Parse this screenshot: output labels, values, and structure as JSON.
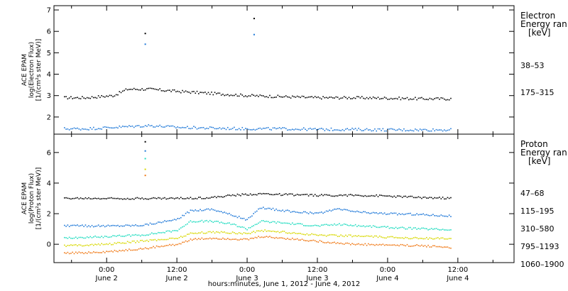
{
  "chart_data": [
    {
      "type": "scatter",
      "panel": "electron",
      "ylabel_lines": [
        "ACE EPAM",
        "log(Electron Flux)",
        "[1/(cm²s ster MeV)]"
      ],
      "legend_title": [
        "Electron",
        "Energy ran",
        "[keV]"
      ],
      "ylim": [
        1.2,
        7.2
      ],
      "yticks": [
        2,
        3,
        4,
        5,
        6,
        7
      ],
      "series": [
        {
          "name": "38–53",
          "color": "#000000",
          "values": [
            [
              -0.6,
              2.9
            ],
            [
              -0.3,
              2.9
            ],
            [
              0.1,
              3.0
            ],
            [
              0.3,
              3.3
            ],
            [
              0.6,
              3.3
            ],
            [
              1.0,
              3.2
            ],
            [
              1.5,
              3.1
            ],
            [
              2.0,
              3.0
            ],
            [
              2.5,
              2.95
            ],
            [
              3.0,
              2.9
            ],
            [
              3.5,
              2.9
            ],
            [
              4.0,
              2.88
            ],
            [
              4.5,
              2.85
            ],
            [
              4.9,
              2.85
            ]
          ],
          "outliers": [
            [
              0.55,
              5.9
            ],
            [
              2.1,
              6.6
            ]
          ]
        },
        {
          "name": "175–315",
          "color": "#1e78d8",
          "values": [
            [
              -0.6,
              1.45
            ],
            [
              -0.3,
              1.45
            ],
            [
              0.3,
              1.55
            ],
            [
              0.6,
              1.6
            ],
            [
              1.0,
              1.52
            ],
            [
              1.5,
              1.48
            ],
            [
              2.0,
              1.45
            ],
            [
              2.5,
              1.45
            ],
            [
              3.0,
              1.42
            ],
            [
              3.5,
              1.42
            ],
            [
              4.0,
              1.4
            ],
            [
              4.5,
              1.4
            ],
            [
              4.9,
              1.4
            ]
          ],
          "outliers": [
            [
              0.55,
              5.4
            ],
            [
              2.1,
              5.85
            ]
          ]
        }
      ]
    },
    {
      "type": "scatter",
      "panel": "proton",
      "ylabel_lines": [
        "ACE EPAM",
        "log(Proton Flux)",
        "[1/(cm²s ster MeV)]"
      ],
      "legend_title": [
        "Proton",
        "Energy ran",
        "[keV]"
      ],
      "ylim": [
        -1.2,
        7.2
      ],
      "yticks": [
        0,
        2,
        4,
        6
      ],
      "series": [
        {
          "name": "47–68",
          "color": "#000000",
          "values": [
            [
              -0.6,
              3.0
            ],
            [
              0.0,
              3.0
            ],
            [
              0.5,
              3.0
            ],
            [
              1.0,
              3.0
            ],
            [
              1.5,
              3.05
            ],
            [
              1.8,
              3.2
            ],
            [
              2.2,
              3.3
            ],
            [
              2.5,
              3.25
            ],
            [
              3.0,
              3.2
            ],
            [
              3.5,
              3.2
            ],
            [
              4.0,
              3.15
            ],
            [
              4.5,
              3.05
            ],
            [
              4.9,
              3.0
            ]
          ]
        },
        {
          "name": "115–195",
          "color": "#1e78d8",
          "values": [
            [
              -0.6,
              1.2
            ],
            [
              0.0,
              1.2
            ],
            [
              0.5,
              1.25
            ],
            [
              1.0,
              1.6
            ],
            [
              1.2,
              2.2
            ],
            [
              1.5,
              2.3
            ],
            [
              1.8,
              1.9
            ],
            [
              2.0,
              1.6
            ],
            [
              2.2,
              2.4
            ],
            [
              2.5,
              2.2
            ],
            [
              3.0,
              2.0
            ],
            [
              3.3,
              2.3
            ],
            [
              3.6,
              2.1
            ],
            [
              4.0,
              2.0
            ],
            [
              4.5,
              1.95
            ],
            [
              4.9,
              1.85
            ]
          ]
        },
        {
          "name": "310–580",
          "color": "#20dcc0",
          "values": [
            [
              -0.6,
              0.4
            ],
            [
              0.0,
              0.5
            ],
            [
              0.5,
              0.6
            ],
            [
              1.0,
              0.9
            ],
            [
              1.2,
              1.5
            ],
            [
              1.5,
              1.5
            ],
            [
              1.8,
              1.3
            ],
            [
              2.0,
              1.0
            ],
            [
              2.2,
              1.5
            ],
            [
              2.5,
              1.4
            ],
            [
              3.0,
              1.2
            ],
            [
              3.3,
              1.3
            ],
            [
              3.6,
              1.2
            ],
            [
              4.0,
              1.1
            ],
            [
              4.5,
              1.0
            ],
            [
              4.9,
              0.95
            ]
          ]
        },
        {
          "name": "795–1193",
          "color": "#d8d800",
          "values": [
            [
              -0.6,
              -0.1
            ],
            [
              0.0,
              0.0
            ],
            [
              0.5,
              0.2
            ],
            [
              1.0,
              0.4
            ],
            [
              1.2,
              0.7
            ],
            [
              1.5,
              0.8
            ],
            [
              1.8,
              0.75
            ],
            [
              2.0,
              0.7
            ],
            [
              2.2,
              0.9
            ],
            [
              2.5,
              0.8
            ],
            [
              3.0,
              0.6
            ],
            [
              3.5,
              0.55
            ],
            [
              4.0,
              0.45
            ],
            [
              4.5,
              0.4
            ],
            [
              4.9,
              0.35
            ]
          ]
        },
        {
          "name": "1060–1900",
          "color": "#f07814",
          "values": [
            [
              -0.6,
              -0.6
            ],
            [
              0.0,
              -0.5
            ],
            [
              0.5,
              -0.3
            ],
            [
              1.0,
              0.0
            ],
            [
              1.2,
              0.3
            ],
            [
              1.5,
              0.4
            ],
            [
              1.8,
              0.35
            ],
            [
              2.0,
              0.3
            ],
            [
              2.2,
              0.5
            ],
            [
              2.5,
              0.4
            ],
            [
              3.0,
              0.2
            ],
            [
              3.5,
              0.0
            ],
            [
              4.0,
              -0.05
            ],
            [
              4.5,
              -0.1
            ],
            [
              4.9,
              -0.2
            ]
          ]
        }
      ],
      "outliers": [
        {
          "series": 0,
          "x": 0.55,
          "y": 6.7
        },
        {
          "series": 1,
          "x": 0.55,
          "y": 6.1
        },
        {
          "series": 2,
          "x": 0.55,
          "y": 5.6
        },
        {
          "series": 3,
          "x": 0.55,
          "y": 4.9
        },
        {
          "series": 4,
          "x": 0.55,
          "y": 4.5
        }
      ]
    }
  ],
  "xaxis": {
    "label": "hours:minutes, June  1, 2012 - June  4, 2012",
    "xlim": [
      -0.75,
      5.8
    ],
    "ticks": [
      {
        "x": 0.0,
        "time": "0:00",
        "date": "June 2"
      },
      {
        "x": 1.0,
        "time": "12:00",
        "date": "June 2"
      },
      {
        "x": 2.0,
        "time": "0:00",
        "date": "June 3"
      },
      {
        "x": 3.0,
        "time": "12:00",
        "date": "June 3"
      },
      {
        "x": 4.0,
        "time": "0:00",
        "date": "June 4"
      },
      {
        "x": 5.0,
        "time": "12:00",
        "date": "June 4"
      }
    ]
  }
}
